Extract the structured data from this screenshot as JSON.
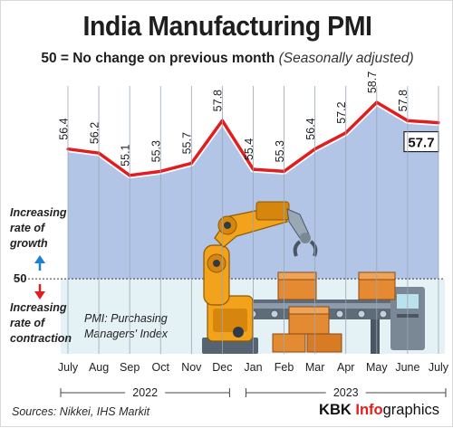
{
  "header": {
    "title": "India Manufacturing PMI",
    "subtitle_lead": "50 = No change on previous month",
    "subtitle_paren": "(Seasonally adjusted)"
  },
  "chart_data": {
    "type": "area",
    "title": "India Manufacturing PMI",
    "categories": [
      "July",
      "Aug",
      "Sep",
      "Oct",
      "Nov",
      "Dec",
      "Jan",
      "Feb",
      "Mar",
      "Apr",
      "May",
      "June",
      "July"
    ],
    "years": [
      {
        "label": "2022",
        "from": 0,
        "to": 5
      },
      {
        "label": "2023",
        "from": 6,
        "to": 12
      }
    ],
    "series": [
      {
        "values": [
          56.4,
          56.2,
          55.1,
          55.3,
          55.7,
          57.8,
          55.4,
          55.3,
          56.4,
          57.2,
          58.7,
          57.8,
          57.7
        ]
      }
    ],
    "value_labels": [
      "56.4",
      "56.2",
      "55.1",
      "55.3",
      "55.7",
      "57.8",
      "55.4",
      "55.3",
      "56.4",
      "57.2",
      "58.7",
      "57.8",
      "57.7"
    ],
    "baseline": 50,
    "baseline_label": "50",
    "ylim": [
      46.3,
      59.6
    ],
    "highlight_last": true,
    "colors": {
      "line": "#e11d1d",
      "fill": "#aec2e6",
      "below": "#e4f2f6",
      "up_arrow": "#1d7fd6",
      "down_arrow": "#e11d1d"
    }
  },
  "annotations": {
    "growth_label": "Increasing rate of growth",
    "contraction_label": "Increasing rate of contraction",
    "pmi_note": "PMI: Purchasing Managers' Index"
  },
  "footer": {
    "sources": "Sources: Nikkei, IHS Markit",
    "brand_kbk": "KBK",
    "brand_info": "Info",
    "brand_graphics": "graphics"
  }
}
